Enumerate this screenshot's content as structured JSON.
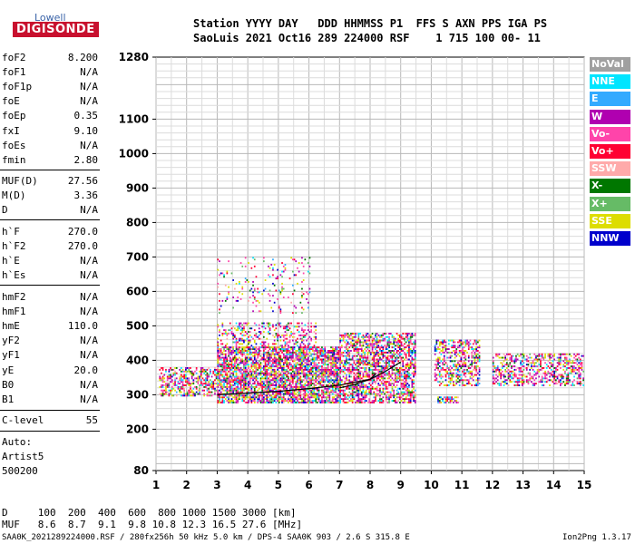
{
  "logo": {
    "name": "Lowell",
    "brand": "DIGISONDE"
  },
  "header": {
    "labels": "Station YYYY DAY   DDD HHMMSS P1  FFS S AXN PPS IGA PS",
    "values": "SaoLuis 2021 Oct16 289 224000 RSF    1 715 100 00- 11"
  },
  "params_group1": [
    {
      "label": "foF2",
      "value": "8.200"
    },
    {
      "label": "foF1",
      "value": "N/A"
    },
    {
      "label": "foF1p",
      "value": "N/A"
    },
    {
      "label": "foE",
      "value": "N/A"
    },
    {
      "label": "foEp",
      "value": "0.35"
    },
    {
      "label": "fxI",
      "value": "9.10"
    },
    {
      "label": "foEs",
      "value": "N/A"
    },
    {
      "label": "fmin",
      "value": "2.80"
    }
  ],
  "params_group2": [
    {
      "label": "MUF(D)",
      "value": "27.56"
    },
    {
      "label": "M(D)",
      "value": "3.36"
    },
    {
      "label": "D",
      "value": "N/A"
    }
  ],
  "params_group3": [
    {
      "label": "h`F",
      "value": "270.0"
    },
    {
      "label": "h`F2",
      "value": "270.0"
    },
    {
      "label": "h`E",
      "value": "N/A"
    },
    {
      "label": "h`Es",
      "value": "N/A"
    }
  ],
  "params_group4": [
    {
      "label": "hmF2",
      "value": "N/A"
    },
    {
      "label": "hmF1",
      "value": "N/A"
    },
    {
      "label": "hmE",
      "value": "110.0"
    },
    {
      "label": "yF2",
      "value": "N/A"
    },
    {
      "label": "yF1",
      "value": "N/A"
    },
    {
      "label": "yE",
      "value": "20.0"
    },
    {
      "label": "B0",
      "value": "N/A"
    },
    {
      "label": "B1",
      "value": "N/A"
    }
  ],
  "c_level": {
    "label": "C-level",
    "value": "55"
  },
  "auto": {
    "line1": "Auto:",
    "line2": "Artist5",
    "line3": "500200"
  },
  "legend": [
    {
      "label": "NoVal",
      "color": "#a0a0a0"
    },
    {
      "label": "NNE",
      "color": "#00e5ff"
    },
    {
      "label": "E",
      "color": "#33aaff"
    },
    {
      "label": "W",
      "color": "#b000b0"
    },
    {
      "label": "Vo-",
      "color": "#ff44aa"
    },
    {
      "label": "Vo+",
      "color": "#ff0033"
    },
    {
      "label": "SSW",
      "color": "#ffaaaa"
    },
    {
      "label": "X-",
      "color": "#007700"
    },
    {
      "label": "X+",
      "color": "#66bb66"
    },
    {
      "label": "SSE",
      "color": "#dddd00"
    },
    {
      "label": "NNW",
      "color": "#0000cc"
    }
  ],
  "bottom": {
    "line1": "D     100  200  400  600  800 1000 1500 3000 [km]",
    "line2": "MUF   8.6  8.7  9.1  9.8 10.8 12.3 16.5 27.6 [MHz]"
  },
  "footer": {
    "left": "SAA0K_2021289224000.RSF / 280fx256h 50 kHz 5.0 km / DPS-4 SAA0K 903 / 2.6 S 315.8 E",
    "right": "Ion2Png 1.3.17"
  },
  "chart_data": {
    "type": "scatter",
    "title": "",
    "xlabel": "",
    "ylabel": "",
    "xlim": [
      1,
      15
    ],
    "ylim": [
      80,
      1280
    ],
    "x_ticks": [
      1,
      2,
      3,
      4,
      5,
      6,
      7,
      8,
      9,
      10,
      11,
      12,
      13,
      14,
      15
    ],
    "y_ticks": [
      80,
      200,
      300,
      400,
      500,
      600,
      700,
      800,
      900,
      1000,
      1100,
      1280
    ],
    "grid": true,
    "legend_position": "right",
    "units": {
      "x": "MHz",
      "y": "km"
    },
    "echo_regions": [
      {
        "x_range": [
          1.1,
          3.0
        ],
        "y_range": [
          300,
          380
        ],
        "density": 0.5
      },
      {
        "x_range": [
          3.0,
          7.0
        ],
        "y_range": [
          280,
          440
        ],
        "density": 0.75
      },
      {
        "x_range": [
          3.0,
          6.2
        ],
        "y_range": [
          440,
          510
        ],
        "density": 0.3
      },
      {
        "x_range": [
          3.0,
          6.0
        ],
        "y_range": [
          540,
          700
        ],
        "density": 0.08
      },
      {
        "x_range": [
          7.0,
          9.5
        ],
        "y_range": [
          280,
          480
        ],
        "density": 0.6
      },
      {
        "x_range": [
          10.1,
          11.6
        ],
        "y_range": [
          330,
          460
        ],
        "density": 0.5
      },
      {
        "x_range": [
          10.2,
          10.9
        ],
        "y_range": [
          280,
          295
        ],
        "density": 0.7
      },
      {
        "x_range": [
          12.0,
          15.0
        ],
        "y_range": [
          330,
          420
        ],
        "density": 0.45
      }
    ],
    "trace_o": {
      "series": "Vo+",
      "x": [
        3.0,
        4.0,
        5.0,
        6.0,
        7.0,
        8.0,
        8.2
      ],
      "y": [
        300,
        305,
        310,
        318,
        328,
        345,
        362
      ]
    },
    "trace_x": {
      "series": "X-",
      "x": [
        7.0,
        7.5,
        8.0,
        8.5,
        9.0
      ],
      "y": [
        320,
        330,
        345,
        368,
        395
      ]
    }
  }
}
